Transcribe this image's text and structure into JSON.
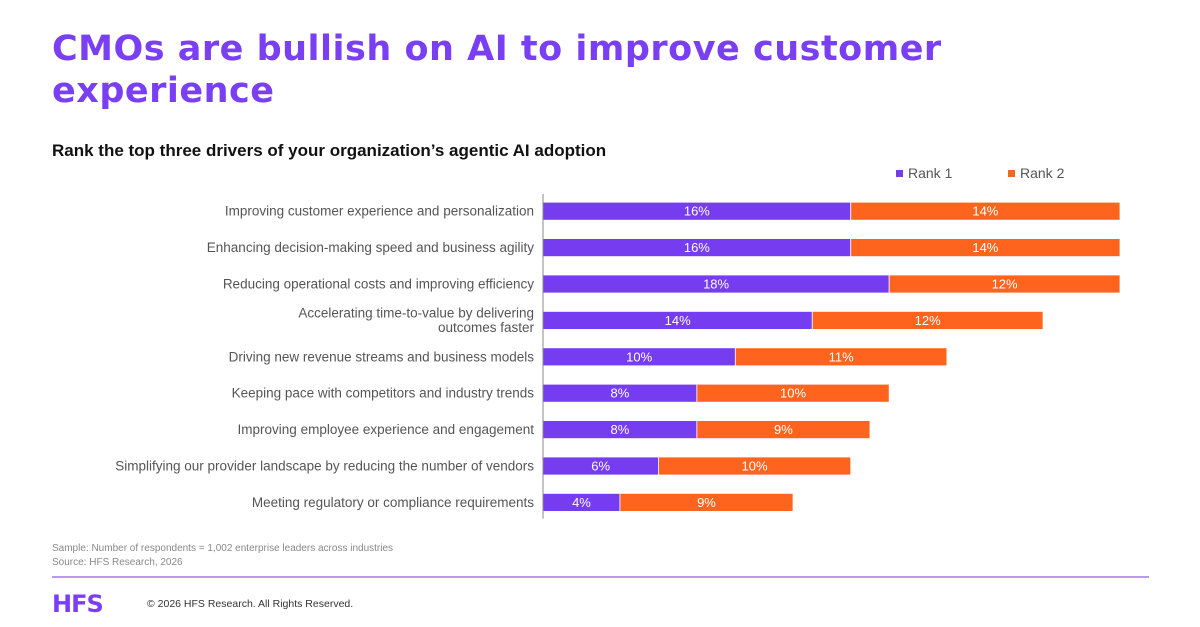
{
  "header": {
    "title": "CMOs are bullish on AI to improve customer experience",
    "subtitle": "Rank the top three drivers of your organization’s agentic AI adoption"
  },
  "legend": [
    {
      "label": "Rank 1",
      "color": "#763cef"
    },
    {
      "label": "Rank 2",
      "color": "#ff641e"
    }
  ],
  "chart_data": {
    "type": "bar",
    "orientation": "horizontal",
    "stacked": true,
    "title": "Rank the top three drivers of your organization’s agentic AI adoption",
    "xlabel": "",
    "ylabel": "",
    "unit": "%",
    "xlim": [
      0,
      30
    ],
    "grid": false,
    "legend_position": "top-right",
    "categories": [
      "Improving customer experience and personalization",
      "Enhancing decision-making speed and business agility",
      "Reducing operational costs and improving efficiency",
      "Accelerating time-to-value by delivering outcomes faster",
      "Driving new revenue streams and business models",
      "Keeping pace with competitors and industry trends",
      "Improving employee experience and engagement",
      "Simplifying our provider landscape by reducing the number of vendors",
      "Meeting regulatory or compliance requirements"
    ],
    "category_lines": [
      [
        "Improving customer experience and personalization"
      ],
      [
        "Enhancing decision-making speed and business agility"
      ],
      [
        "Reducing operational costs and improving efficiency"
      ],
      [
        "Accelerating time-to-value by delivering",
        "outcomes faster"
      ],
      [
        "Driving new revenue streams and business models"
      ],
      [
        "Keeping pace with competitors and industry trends"
      ],
      [
        "Improving employee experience and engagement"
      ],
      [
        "Simplifying our provider landscape by reducing the number of vendors"
      ],
      [
        "Meeting regulatory or compliance requirements"
      ]
    ],
    "series": [
      {
        "name": "Rank 1",
        "color": "#763cef",
        "values": [
          16,
          16,
          18,
          14,
          10,
          8,
          8,
          6,
          4
        ]
      },
      {
        "name": "Rank 2",
        "color": "#ff641e",
        "values": [
          14,
          14,
          12,
          12,
          11,
          10,
          9,
          10,
          9
        ]
      }
    ]
  },
  "footer": {
    "sample_note": "Sample: Number of respondents = 1,002 enterprise leaders across industries",
    "source_note": "Source: HFS Research, 2026",
    "logo": "HFS",
    "copyright": "© 2026 HFS Research. All Rights Reserved."
  }
}
